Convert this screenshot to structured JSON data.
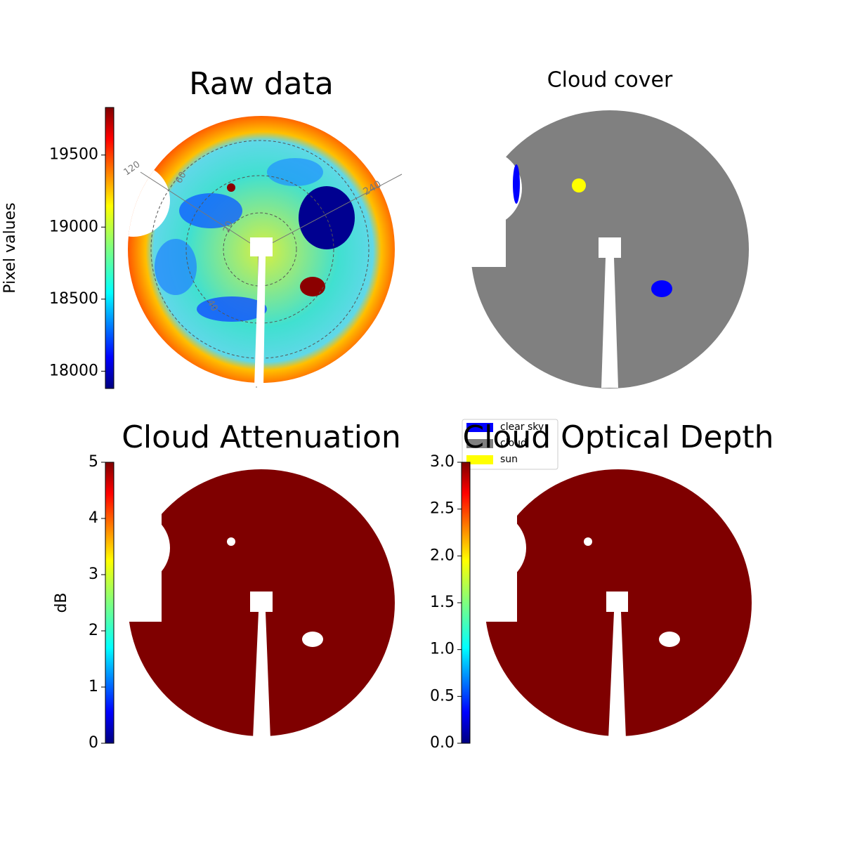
{
  "chart_data": [
    {
      "type": "image",
      "title": "Raw data",
      "colorbar_label": "Pixel values",
      "colormap": "jet",
      "ylim": [
        17880,
        19830
      ],
      "yticks": [
        18000,
        18500,
        19000,
        19500
      ],
      "annotations": [
        "120",
        "60",
        "20",
        "40",
        "240"
      ]
    },
    {
      "type": "image",
      "title": "Cloud cover",
      "legend": [
        {
          "name": "clear sky",
          "color": "#0000ff"
        },
        {
          "name": "cloud",
          "color": "#808080"
        },
        {
          "name": "sun",
          "color": "#ffff00"
        }
      ]
    },
    {
      "type": "image",
      "title": "Cloud Attenuation",
      "colorbar_label": "dB",
      "colormap": "jet",
      "ylim": [
        0,
        5
      ],
      "yticks": [
        0,
        1,
        2,
        3,
        4,
        5
      ]
    },
    {
      "type": "image",
      "title": "Cloud Optical Depth",
      "colormap": "jet",
      "ylim": [
        0,
        3
      ],
      "yticks": [
        {
          "value": 0,
          "label": "0.0"
        },
        {
          "value": 0.5,
          "label": "0.5"
        },
        {
          "value": 1,
          "label": "1.0"
        },
        {
          "value": 1.5,
          "label": "1.5"
        },
        {
          "value": 2,
          "label": "2.0"
        },
        {
          "value": 2.5,
          "label": "2.5"
        },
        {
          "value": 3,
          "label": "3.0"
        }
      ]
    }
  ]
}
